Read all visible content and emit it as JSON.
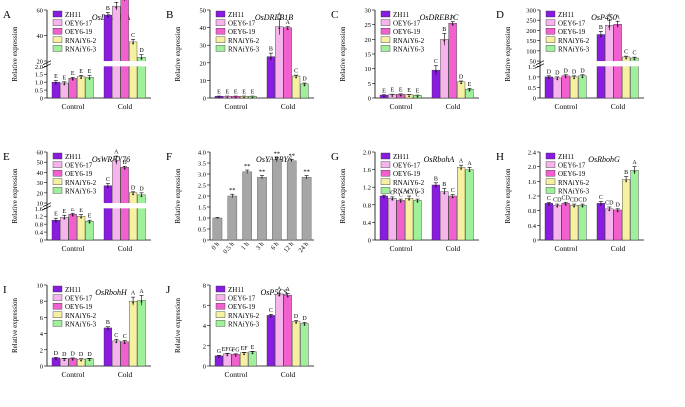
{
  "legend": [
    {
      "name": "ZH11",
      "color": "#8A1BE0"
    },
    {
      "name": "OEY6-17",
      "color": "#F7B4EC"
    },
    {
      "name": "OEY6-19",
      "color": "#F25FCF"
    },
    {
      "name": "RNAiY6-2",
      "color": "#F6F0A2"
    },
    {
      "name": "RNAiY6-3",
      "color": "#9FF09A"
    }
  ],
  "chart_data": [
    {
      "letter": "A",
      "title": "OsDREB1A",
      "type": "bar",
      "ylabel": "Relative expression",
      "categories": [
        "Control",
        "Cold"
      ],
      "break": {
        "low": [
          0,
          2.0
        ],
        "high": [
          20,
          60
        ]
      },
      "ticks_low": [
        "0",
        "0.5",
        "1.0",
        "1.5",
        "2.0"
      ],
      "ticks_high": [
        "20",
        "40",
        "60"
      ],
      "series_values": [
        [
          1.0,
          56
        ],
        [
          0.95,
          63
        ],
        [
          1.25,
          70
        ],
        [
          1.35,
          35
        ],
        [
          1.3,
          23
        ]
      ],
      "errors": [
        [
          0.1,
          2
        ],
        [
          0.07,
          3
        ],
        [
          0.05,
          3
        ],
        [
          0.08,
          2
        ],
        [
          0.12,
          2
        ]
      ],
      "letters": [
        [
          "E",
          "B"
        ],
        [
          "E",
          "AB"
        ],
        [
          "E",
          "A"
        ],
        [
          "E",
          "C"
        ],
        [
          "E",
          "D"
        ]
      ]
    },
    {
      "letter": "B",
      "title": "OsDREB1B",
      "type": "bar",
      "ylabel": "Relative expression",
      "categories": [
        "Control",
        "Cold"
      ],
      "ylim": [
        0,
        50
      ],
      "ticks": [
        "0",
        "10",
        "20",
        "30",
        "40",
        "50"
      ],
      "series_values": [
        [
          1.0,
          23.5
        ],
        [
          1.0,
          40.5
        ],
        [
          1.0,
          40
        ],
        [
          1.0,
          12.5
        ],
        [
          1.0,
          8
        ]
      ],
      "errors": [
        [
          0.1,
          2
        ],
        [
          0.1,
          4.5
        ],
        [
          0.1,
          0.5
        ],
        [
          0.1,
          0.5
        ],
        [
          0.1,
          0.5
        ]
      ],
      "letters": [
        [
          "E",
          "B"
        ],
        [
          "E",
          "A"
        ],
        [
          "E",
          "A"
        ],
        [
          "E",
          "C"
        ],
        [
          "E",
          "D"
        ]
      ]
    },
    {
      "letter": "C",
      "title": "OsDREB1C",
      "type": "bar",
      "ylabel": "Relative expression",
      "categories": [
        "Control",
        "Cold"
      ],
      "ylim": [
        0,
        30
      ],
      "ticks": [
        "0",
        "5",
        "10",
        "15",
        "20",
        "25",
        "30"
      ],
      "series_values": [
        [
          1.0,
          9.5
        ],
        [
          1.2,
          20
        ],
        [
          1.3,
          25.5
        ],
        [
          1.1,
          5.5
        ],
        [
          0.9,
          3
        ]
      ],
      "errors": [
        [
          0.1,
          1.5
        ],
        [
          0.1,
          2
        ],
        [
          0.1,
          0.5
        ],
        [
          0.1,
          0.3
        ],
        [
          0.1,
          0.3
        ]
      ],
      "letters": [
        [
          "E",
          "C"
        ],
        [
          "E",
          "B"
        ],
        [
          "E",
          "A"
        ],
        [
          "E",
          "D"
        ],
        [
          "E",
          "E"
        ]
      ]
    },
    {
      "letter": "D",
      "title": "OsP450",
      "type": "bar",
      "ylabel": "Relative expression",
      "categories": [
        "Control",
        "Cold"
      ],
      "break": {
        "low": [
          0,
          1.5
        ],
        "high": [
          50,
          300
        ]
      },
      "ticks_low": [
        "0",
        "0.5",
        "1.0",
        "1.5"
      ],
      "ticks_high": [
        "50",
        "100",
        "150",
        "200",
        "250",
        "300"
      ],
      "series_values": [
        [
          1.0,
          180
        ],
        [
          0.95,
          225
        ],
        [
          1.05,
          230
        ],
        [
          1.0,
          70
        ],
        [
          1.05,
          65
        ]
      ],
      "errors": [
        [
          0.05,
          15
        ],
        [
          0.05,
          25
        ],
        [
          0.05,
          15
        ],
        [
          0.05,
          4
        ],
        [
          0.05,
          4
        ]
      ],
      "letters": [
        [
          "D",
          "B"
        ],
        [
          "D",
          "A"
        ],
        [
          "D",
          "A"
        ],
        [
          "D",
          "C"
        ],
        [
          "D",
          "C"
        ]
      ]
    },
    {
      "letter": "E",
      "title": "OsWRKY76",
      "type": "bar",
      "ylabel": "Relative expression",
      "categories": [
        "Control",
        "Cold"
      ],
      "break": {
        "low": [
          0,
          1.6
        ],
        "high": [
          10,
          60
        ]
      },
      "ticks_low": [
        "0",
        "0.4",
        "0.8",
        "1.2",
        "1.6"
      ],
      "ticks_high": [
        "10",
        "20",
        "30",
        "40",
        "50",
        "60"
      ],
      "series_values": [
        [
          1.0,
          27
        ],
        [
          1.15,
          52
        ],
        [
          1.3,
          45
        ],
        [
          1.2,
          20
        ],
        [
          0.95,
          18
        ]
      ],
      "errors": [
        [
          0.1,
          2
        ],
        [
          0.1,
          4
        ],
        [
          0.05,
          1
        ],
        [
          0.08,
          1
        ],
        [
          0.05,
          2
        ]
      ],
      "letters": [
        [
          "E",
          "C"
        ],
        [
          "E",
          "A"
        ],
        [
          "E",
          "B"
        ],
        [
          "E",
          "D"
        ],
        [
          "E",
          "D"
        ]
      ]
    },
    {
      "letter": "F",
      "title": "OsYABBY6",
      "type": "bar",
      "ylabel": "Relative expression",
      "categories": [
        "0 h",
        "0.5 h",
        "1 h",
        "3 h",
        "6 h",
        "12 h",
        "24 h"
      ],
      "ylim": [
        0,
        4.0
      ],
      "ticks": [
        "0",
        "0.5",
        "1.0",
        "1.5",
        "2.0",
        "2.5",
        "3.0",
        "3.5",
        "4.0"
      ],
      "values": [
        1.0,
        2.0,
        3.1,
        2.85,
        3.65,
        3.6,
        2.85
      ],
      "errors": [
        0.03,
        0.08,
        0.08,
        0.08,
        0.1,
        0.05,
        0.08
      ],
      "marks": [
        "",
        "**",
        "**",
        "**",
        "**",
        "**",
        "**"
      ]
    },
    {
      "letter": "G",
      "title": "OsRbohA",
      "type": "bar",
      "ylabel": "Relative expression",
      "categories": [
        "Control",
        "Cold"
      ],
      "ylim": [
        0,
        2.0
      ],
      "ticks": [
        "0",
        "0.4",
        "0.8",
        "1.2",
        "1.6",
        "2.0"
      ],
      "series_values": [
        [
          1.0,
          1.25
        ],
        [
          0.95,
          1.1
        ],
        [
          0.9,
          1.0
        ],
        [
          0.95,
          1.65
        ],
        [
          0.9,
          1.6
        ]
      ],
      "errors": [
        [
          0.02,
          0.05
        ],
        [
          0.03,
          0.07
        ],
        [
          0.03,
          0.03
        ],
        [
          0.05,
          0.05
        ],
        [
          0.03,
          0.05
        ]
      ],
      "letters": [
        [
          "C",
          "B"
        ],
        [
          "C",
          "B"
        ],
        [
          "C",
          "C"
        ],
        [
          "C",
          "A"
        ],
        [
          "C",
          "A"
        ]
      ]
    },
    {
      "letter": "H",
      "title": "OsRbohG",
      "type": "bar",
      "ylabel": "Relative expression",
      "categories": [
        "Control",
        "Cold"
      ],
      "ylim": [
        0,
        2.4
      ],
      "ticks": [
        "0",
        "0.4",
        "0.8",
        "1.2",
        "1.6",
        "2.0",
        "2.4"
      ],
      "series_values": [
        [
          1.0,
          1.0
        ],
        [
          0.95,
          0.85
        ],
        [
          1.0,
          0.82
        ],
        [
          0.95,
          1.65
        ],
        [
          0.95,
          1.9
        ]
      ],
      "errors": [
        [
          0.02,
          0.05
        ],
        [
          0.03,
          0.05
        ],
        [
          0.03,
          0.03
        ],
        [
          0.03,
          0.08
        ],
        [
          0.03,
          0.1
        ]
      ],
      "letters": [
        [
          "C",
          "C"
        ],
        [
          "CD",
          "CD"
        ],
        [
          "CD",
          "D"
        ],
        [
          "CD",
          "B"
        ],
        [
          "CD",
          "A"
        ]
      ]
    },
    {
      "letter": "I",
      "title": "OsRbohH",
      "type": "bar",
      "ylabel": "Relative expression",
      "categories": [
        "Control",
        "Cold"
      ],
      "ylim": [
        0,
        10
      ],
      "ticks": [
        "0",
        "2",
        "4",
        "6",
        "8",
        "10"
      ],
      "series_values": [
        [
          1.0,
          4.7
        ],
        [
          0.9,
          3.1
        ],
        [
          0.95,
          3.0
        ],
        [
          0.85,
          8.0
        ],
        [
          0.9,
          8.1
        ]
      ],
      "errors": [
        [
          0.05,
          0.15
        ],
        [
          0.05,
          0.2
        ],
        [
          0.05,
          0.15
        ],
        [
          0.05,
          0.5
        ],
        [
          0.05,
          0.6
        ]
      ],
      "letters": [
        [
          "D",
          "B"
        ],
        [
          "D",
          "C"
        ],
        [
          "D",
          "C"
        ],
        [
          "D",
          "A"
        ],
        [
          "D",
          "A"
        ]
      ]
    },
    {
      "letter": "J",
      "title": "OsP5CS",
      "type": "bar",
      "ylabel": "Relative expression",
      "categories": [
        "Control",
        "Cold"
      ],
      "ylim": [
        0,
        8
      ],
      "ticks": [
        "0",
        "2",
        "4",
        "6",
        "8"
      ],
      "series_values": [
        [
          1.0,
          5.0
        ],
        [
          1.2,
          7.1
        ],
        [
          1.15,
          7.0
        ],
        [
          1.3,
          4.4
        ],
        [
          1.4,
          4.2
        ]
      ],
      "errors": [
        [
          0.05,
          0.1
        ],
        [
          0.05,
          0.1
        ],
        [
          0.05,
          0.15
        ],
        [
          0.05,
          0.1
        ],
        [
          0.05,
          0.1
        ]
      ],
      "letters": [
        [
          "G",
          "C"
        ],
        [
          "EFG",
          "A"
        ],
        [
          "FG",
          "A"
        ],
        [
          "EF",
          "D"
        ],
        [
          "E",
          "D"
        ]
      ]
    }
  ]
}
